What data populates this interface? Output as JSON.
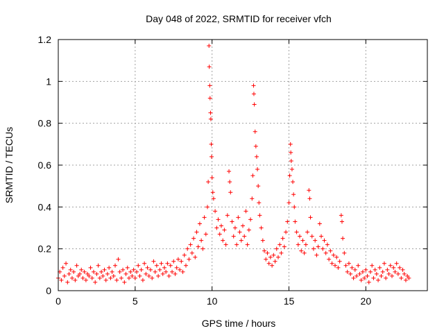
{
  "chart_data": {
    "type": "scatter",
    "title": "Day 048 of 2022, SRMTID for receiver vfch",
    "xlabel": "GPS time / hours",
    "ylabel": "SRMTID / TECUs",
    "xlim": [
      0,
      24
    ],
    "ylim": [
      0,
      1.2
    ],
    "xticks": [
      0,
      5,
      10,
      15,
      20
    ],
    "yticks": [
      0,
      0.2,
      0.4,
      0.6,
      0.8,
      1,
      1.2
    ],
    "grid": true,
    "marker": "+",
    "color": "#ff0000",
    "series": [
      {
        "name": "SRMTID",
        "points": [
          [
            0.0,
            0.06
          ],
          [
            0.1,
            0.09
          ],
          [
            0.2,
            0.05
          ],
          [
            0.3,
            0.11
          ],
          [
            0.4,
            0.07
          ],
          [
            0.5,
            0.13
          ],
          [
            0.6,
            0.04
          ],
          [
            0.7,
            0.08
          ],
          [
            0.8,
            0.1
          ],
          [
            0.9,
            0.06
          ],
          [
            1.0,
            0.09
          ],
          [
            1.1,
            0.05
          ],
          [
            1.2,
            0.12
          ],
          [
            1.3,
            0.07
          ],
          [
            1.4,
            0.08
          ],
          [
            1.5,
            0.1
          ],
          [
            1.6,
            0.06
          ],
          [
            1.7,
            0.09
          ],
          [
            1.8,
            0.05
          ],
          [
            1.9,
            0.08
          ],
          [
            2.0,
            0.07
          ],
          [
            2.1,
            0.11
          ],
          [
            2.2,
            0.06
          ],
          [
            2.3,
            0.09
          ],
          [
            2.4,
            0.04
          ],
          [
            2.5,
            0.08
          ],
          [
            2.6,
            0.12
          ],
          [
            2.7,
            0.06
          ],
          [
            2.8,
            0.09
          ],
          [
            2.9,
            0.07
          ],
          [
            3.0,
            0.1
          ],
          [
            3.1,
            0.05
          ],
          [
            3.2,
            0.08
          ],
          [
            3.3,
            0.11
          ],
          [
            3.4,
            0.06
          ],
          [
            3.5,
            0.09
          ],
          [
            3.6,
            0.07
          ],
          [
            3.7,
            0.12
          ],
          [
            3.8,
            0.05
          ],
          [
            3.9,
            0.15
          ],
          [
            4.0,
            0.09
          ],
          [
            4.1,
            0.06
          ],
          [
            4.2,
            0.1
          ],
          [
            4.3,
            0.04
          ],
          [
            4.4,
            0.08
          ],
          [
            4.5,
            0.11
          ],
          [
            4.6,
            0.06
          ],
          [
            4.7,
            0.09
          ],
          [
            4.8,
            0.07
          ],
          [
            4.9,
            0.1
          ],
          [
            5.0,
            0.06
          ],
          [
            5.1,
            0.09
          ],
          [
            5.2,
            0.12
          ],
          [
            5.3,
            0.07
          ],
          [
            5.4,
            0.1
          ],
          [
            5.5,
            0.05
          ],
          [
            5.6,
            0.13
          ],
          [
            5.7,
            0.08
          ],
          [
            5.8,
            0.11
          ],
          [
            5.9,
            0.07
          ],
          [
            6.0,
            0.1
          ],
          [
            6.1,
            0.06
          ],
          [
            6.2,
            0.14
          ],
          [
            6.3,
            0.09
          ],
          [
            6.4,
            0.12
          ],
          [
            6.5,
            0.07
          ],
          [
            6.6,
            0.1
          ],
          [
            6.7,
            0.13
          ],
          [
            6.8,
            0.08
          ],
          [
            6.9,
            0.11
          ],
          [
            7.0,
            0.09
          ],
          [
            7.1,
            0.13
          ],
          [
            7.2,
            0.07
          ],
          [
            7.3,
            0.12
          ],
          [
            7.4,
            0.09
          ],
          [
            7.5,
            0.14
          ],
          [
            7.6,
            0.08
          ],
          [
            7.7,
            0.11
          ],
          [
            7.8,
            0.15
          ],
          [
            7.9,
            0.1
          ],
          [
            8.0,
            0.14
          ],
          [
            8.1,
            0.09
          ],
          [
            8.2,
            0.17
          ],
          [
            8.3,
            0.12
          ],
          [
            8.4,
            0.2
          ],
          [
            8.5,
            0.15
          ],
          [
            8.6,
            0.22
          ],
          [
            8.7,
            0.18
          ],
          [
            8.8,
            0.25
          ],
          [
            8.9,
            0.16
          ],
          [
            9.0,
            0.28
          ],
          [
            9.1,
            0.21
          ],
          [
            9.2,
            0.32
          ],
          [
            9.3,
            0.24
          ],
          [
            9.4,
            0.2
          ],
          [
            9.5,
            0.35
          ],
          [
            9.6,
            0.27
          ],
          [
            9.7,
            0.4
          ],
          [
            9.75,
            0.52
          ],
          [
            9.8,
            1.17
          ],
          [
            9.82,
            1.07
          ],
          [
            9.85,
            0.98
          ],
          [
            9.87,
            0.92
          ],
          [
            9.9,
            0.85
          ],
          [
            9.92,
            0.82
          ],
          [
            9.95,
            0.7
          ],
          [
            9.97,
            0.64
          ],
          [
            10.0,
            0.54
          ],
          [
            10.05,
            0.47
          ],
          [
            10.1,
            0.44
          ],
          [
            10.2,
            0.38
          ],
          [
            10.3,
            0.3
          ],
          [
            10.4,
            0.34
          ],
          [
            10.5,
            0.27
          ],
          [
            10.6,
            0.31
          ],
          [
            10.7,
            0.24
          ],
          [
            10.8,
            0.29
          ],
          [
            10.9,
            0.22
          ],
          [
            11.0,
            0.36
          ],
          [
            11.1,
            0.57
          ],
          [
            11.15,
            0.52
          ],
          [
            11.2,
            0.47
          ],
          [
            11.3,
            0.33
          ],
          [
            11.4,
            0.26
          ],
          [
            11.5,
            0.3
          ],
          [
            11.6,
            0.22
          ],
          [
            11.7,
            0.35
          ],
          [
            11.8,
            0.28
          ],
          [
            11.9,
            0.24
          ],
          [
            12.0,
            0.31
          ],
          [
            12.1,
            0.26
          ],
          [
            12.2,
            0.38
          ],
          [
            12.3,
            0.22
          ],
          [
            12.4,
            0.29
          ],
          [
            12.5,
            0.34
          ],
          [
            12.6,
            0.44
          ],
          [
            12.65,
            0.55
          ],
          [
            12.7,
            0.98
          ],
          [
            12.72,
            0.94
          ],
          [
            12.75,
            0.89
          ],
          [
            12.8,
            0.76
          ],
          [
            12.85,
            0.69
          ],
          [
            12.9,
            0.64
          ],
          [
            12.95,
            0.58
          ],
          [
            13.0,
            0.5
          ],
          [
            13.05,
            0.42
          ],
          [
            13.1,
            0.36
          ],
          [
            13.2,
            0.3
          ],
          [
            13.3,
            0.24
          ],
          [
            13.4,
            0.19
          ],
          [
            13.5,
            0.15
          ],
          [
            13.6,
            0.18
          ],
          [
            13.7,
            0.13
          ],
          [
            13.8,
            0.16
          ],
          [
            13.9,
            0.12
          ],
          [
            14.0,
            0.17
          ],
          [
            14.1,
            0.14
          ],
          [
            14.2,
            0.2
          ],
          [
            14.3,
            0.16
          ],
          [
            14.4,
            0.22
          ],
          [
            14.5,
            0.18
          ],
          [
            14.6,
            0.25
          ],
          [
            14.7,
            0.21
          ],
          [
            14.8,
            0.28
          ],
          [
            14.9,
            0.33
          ],
          [
            15.0,
            0.42
          ],
          [
            15.05,
            0.55
          ],
          [
            15.1,
            0.7
          ],
          [
            15.12,
            0.66
          ],
          [
            15.15,
            0.62
          ],
          [
            15.2,
            0.58
          ],
          [
            15.25,
            0.52
          ],
          [
            15.3,
            0.46
          ],
          [
            15.35,
            0.4
          ],
          [
            15.4,
            0.33
          ],
          [
            15.5,
            0.28
          ],
          [
            15.6,
            0.22
          ],
          [
            15.7,
            0.26
          ],
          [
            15.8,
            0.19
          ],
          [
            15.9,
            0.24
          ],
          [
            16.0,
            0.18
          ],
          [
            16.1,
            0.22
          ],
          [
            16.2,
            0.28
          ],
          [
            16.3,
            0.48
          ],
          [
            16.35,
            0.44
          ],
          [
            16.4,
            0.35
          ],
          [
            16.5,
            0.26
          ],
          [
            16.6,
            0.2
          ],
          [
            16.7,
            0.24
          ],
          [
            16.8,
            0.17
          ],
          [
            16.9,
            0.21
          ],
          [
            17.0,
            0.32
          ],
          [
            17.1,
            0.26
          ],
          [
            17.2,
            0.2
          ],
          [
            17.3,
            0.24
          ],
          [
            17.4,
            0.18
          ],
          [
            17.5,
            0.22
          ],
          [
            17.6,
            0.15
          ],
          [
            17.7,
            0.19
          ],
          [
            17.8,
            0.13
          ],
          [
            17.9,
            0.17
          ],
          [
            18.0,
            0.12
          ],
          [
            18.1,
            0.16
          ],
          [
            18.2,
            0.11
          ],
          [
            18.3,
            0.14
          ],
          [
            18.4,
            0.36
          ],
          [
            18.45,
            0.33
          ],
          [
            18.5,
            0.25
          ],
          [
            18.6,
            0.18
          ],
          [
            18.7,
            0.12
          ],
          [
            18.8,
            0.09
          ],
          [
            18.9,
            0.13
          ],
          [
            19.0,
            0.08
          ],
          [
            19.1,
            0.11
          ],
          [
            19.2,
            0.06
          ],
          [
            19.3,
            0.1
          ],
          [
            19.4,
            0.07
          ],
          [
            19.5,
            0.12
          ],
          [
            19.6,
            0.08
          ],
          [
            19.7,
            0.05
          ],
          [
            19.8,
            0.09
          ],
          [
            19.9,
            0.06
          ],
          [
            20.0,
            0.1
          ],
          [
            20.1,
            0.07
          ],
          [
            20.2,
            0.04
          ],
          [
            20.3,
            0.09
          ],
          [
            20.4,
            0.12
          ],
          [
            20.5,
            0.06
          ],
          [
            20.6,
            0.1
          ],
          [
            20.7,
            0.08
          ],
          [
            20.8,
            0.05
          ],
          [
            20.9,
            0.11
          ],
          [
            21.0,
            0.07
          ],
          [
            21.1,
            0.09
          ],
          [
            21.2,
            0.13
          ],
          [
            21.3,
            0.06
          ],
          [
            21.4,
            0.1
          ],
          [
            21.5,
            0.08
          ],
          [
            21.6,
            0.12
          ],
          [
            21.7,
            0.07
          ],
          [
            21.8,
            0.11
          ],
          [
            21.9,
            0.09
          ],
          [
            22.0,
            0.13
          ],
          [
            22.1,
            0.08
          ],
          [
            22.2,
            0.11
          ],
          [
            22.3,
            0.06
          ],
          [
            22.4,
            0.1
          ],
          [
            22.5,
            0.08
          ],
          [
            22.6,
            0.05
          ],
          [
            22.7,
            0.07
          ],
          [
            22.8,
            0.06
          ]
        ]
      }
    ]
  }
}
